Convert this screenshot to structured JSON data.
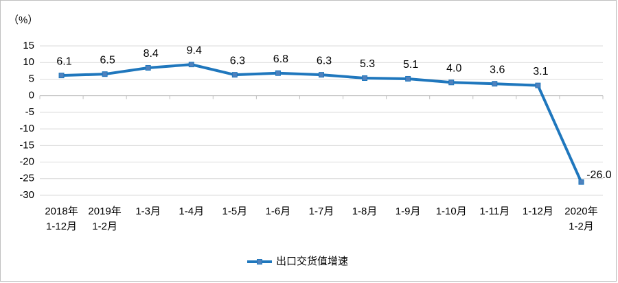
{
  "chart_data": {
    "type": "line",
    "y_axis_label": "（%）",
    "categories": [
      "2018年\n1-12月",
      "2019年\n1-2月",
      "1-3月",
      "1-4月",
      "1-5月",
      "1-6月",
      "1-7月",
      "1-8月",
      "1-9月",
      "1-10月",
      "1-11月",
      "1-12月",
      "2020年\n1-2月"
    ],
    "series": [
      {
        "name": "出口交货值增速",
        "color": "#1f77bd",
        "values": [
          6.1,
          6.5,
          8.4,
          9.4,
          6.3,
          6.8,
          6.3,
          5.3,
          5.1,
          4.0,
          3.6,
          3.1,
          -26.0
        ],
        "value_labels": [
          "6.1",
          "6.5",
          "8.4",
          "9.4",
          "6.3",
          "6.8",
          "6.3",
          "5.3",
          "5.1",
          "4.0",
          "3.6",
          "3.1",
          "-26.0"
        ]
      }
    ],
    "ylim": [
      -30,
      15
    ],
    "yticks": [
      -30,
      -25,
      -20,
      -15,
      -10,
      -5,
      0,
      5,
      10,
      15
    ],
    "grid": true,
    "legend": "bottom"
  }
}
